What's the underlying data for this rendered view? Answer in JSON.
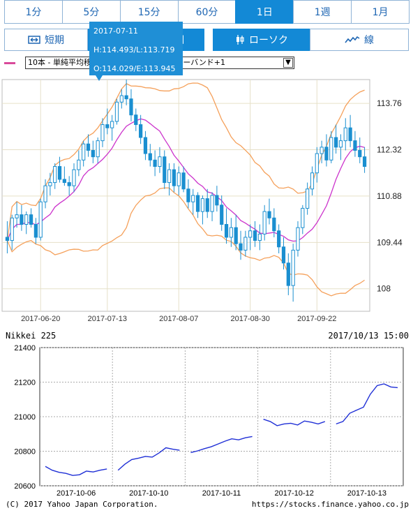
{
  "tabs": [
    {
      "label": "1分"
    },
    {
      "label": "5分"
    },
    {
      "label": "15分"
    },
    {
      "label": "60分"
    },
    {
      "label": "1日",
      "active": true
    },
    {
      "label": "1週"
    },
    {
      "label": "1月"
    }
  ],
  "mode": {
    "short_label": "短期",
    "long_label": "期",
    "candle_label": "ローソク",
    "line_label": "線"
  },
  "indicator": {
    "swatch_color": "#d94a9a",
    "selected": "10本 - 単純平均移動線　　　本 - ボリンジャーバンド+1"
  },
  "tooltip": {
    "date": "2017-07-11",
    "hl": "H:114.493/L:113.719",
    "oe": "O:114.029/E:113.945"
  },
  "chart_data": [
    {
      "type": "candlestick",
      "title": "",
      "x_ticks": [
        "2017-06-20",
        "2017-07-13",
        "2017-08-07",
        "2017-08-30",
        "2017-09-22"
      ],
      "y_ticks": [
        108,
        109.44,
        110.88,
        112.32,
        113.76
      ],
      "ylim": [
        107.3,
        114.5
      ],
      "grid": true,
      "colors": {
        "candle": "#1a8fd0",
        "sma": "#cc33cc",
        "bollinger": "#f5a05a"
      },
      "ohlc": [
        [
          109.6,
          110.1,
          109.1,
          109.5
        ],
        [
          109.5,
          110.3,
          109.2,
          110.2
        ],
        [
          110.2,
          110.7,
          109.9,
          110.3
        ],
        [
          110.3,
          110.6,
          109.8,
          110.0
        ],
        [
          110.0,
          110.4,
          109.7,
          110.3
        ],
        [
          110.3,
          110.5,
          109.9,
          110.0
        ],
        [
          110.0,
          110.2,
          109.4,
          109.6
        ],
        [
          109.6,
          110.8,
          109.5,
          110.7
        ],
        [
          110.7,
          111.4,
          110.5,
          111.2
        ],
        [
          111.2,
          111.6,
          110.9,
          111.3
        ],
        [
          111.3,
          111.9,
          111.1,
          111.8
        ],
        [
          111.8,
          112.1,
          111.3,
          111.4
        ],
        [
          111.4,
          111.8,
          111.2,
          111.3
        ],
        [
          111.3,
          111.5,
          110.9,
          111.2
        ],
        [
          111.2,
          111.9,
          111.0,
          111.7
        ],
        [
          111.7,
          112.3,
          111.5,
          112.0
        ],
        [
          112.0,
          112.6,
          111.8,
          112.5
        ],
        [
          112.5,
          112.8,
          112.1,
          112.3
        ],
        [
          112.3,
          112.6,
          111.9,
          112.1
        ],
        [
          112.1,
          112.7,
          111.9,
          112.6
        ],
        [
          112.6,
          113.3,
          112.4,
          113.1
        ],
        [
          113.1,
          113.6,
          112.8,
          113.0
        ],
        [
          113.0,
          113.4,
          112.6,
          113.2
        ],
        [
          113.2,
          113.9,
          113.1,
          113.8
        ],
        [
          113.8,
          114.2,
          113.6,
          114.0
        ],
        [
          114.0,
          114.5,
          113.7,
          113.9
        ],
        [
          113.9,
          114.2,
          113.2,
          113.4
        ],
        [
          113.4,
          113.6,
          112.9,
          113.1
        ],
        [
          113.1,
          113.4,
          112.5,
          112.7
        ],
        [
          112.7,
          112.9,
          112.0,
          112.2
        ],
        [
          112.2,
          112.5,
          111.8,
          112.0
        ],
        [
          112.0,
          112.3,
          111.5,
          111.8
        ],
        [
          111.8,
          112.4,
          111.6,
          112.1
        ],
        [
          112.1,
          112.3,
          111.1,
          111.3
        ],
        [
          111.3,
          111.9,
          110.9,
          111.7
        ],
        [
          111.7,
          111.9,
          111.0,
          111.2
        ],
        [
          111.2,
          111.8,
          110.9,
          111.6
        ],
        [
          111.6,
          111.8,
          111.0,
          111.1
        ],
        [
          111.1,
          111.4,
          110.5,
          110.7
        ],
        [
          110.7,
          111.1,
          110.3,
          110.9
        ],
        [
          110.9,
          111.0,
          110.2,
          110.4
        ],
        [
          110.4,
          110.9,
          110.0,
          110.8
        ],
        [
          110.8,
          111.1,
          110.2,
          110.4
        ],
        [
          110.4,
          111.0,
          110.1,
          110.9
        ],
        [
          110.9,
          111.2,
          110.4,
          110.6
        ],
        [
          110.6,
          110.9,
          109.8,
          110.0
        ],
        [
          110.0,
          110.5,
          109.4,
          109.6
        ],
        [
          109.6,
          110.2,
          109.3,
          109.9
        ],
        [
          109.9,
          110.3,
          109.2,
          109.4
        ],
        [
          109.4,
          109.8,
          108.9,
          109.2
        ],
        [
          109.2,
          109.8,
          109.0,
          109.6
        ],
        [
          109.6,
          110.0,
          109.2,
          109.8
        ],
        [
          109.8,
          110.1,
          109.3,
          109.5
        ],
        [
          109.5,
          110.0,
          109.2,
          109.7
        ],
        [
          109.7,
          110.6,
          109.5,
          110.4
        ],
        [
          110.4,
          110.8,
          110.0,
          110.2
        ],
        [
          110.2,
          110.5,
          109.6,
          109.8
        ],
        [
          109.8,
          110.0,
          109.1,
          109.3
        ],
        [
          109.3,
          109.6,
          108.6,
          108.8
        ],
        [
          108.8,
          109.1,
          107.8,
          108.1
        ],
        [
          108.1,
          109.4,
          107.6,
          109.2
        ],
        [
          109.2,
          110.1,
          109.0,
          109.9
        ],
        [
          109.9,
          110.6,
          109.7,
          110.5
        ],
        [
          110.5,
          111.3,
          110.3,
          111.1
        ],
        [
          111.1,
          111.8,
          110.9,
          111.6
        ],
        [
          111.6,
          112.4,
          111.3,
          112.2
        ],
        [
          112.2,
          112.6,
          111.9,
          112.4
        ],
        [
          112.4,
          112.8,
          111.8,
          112.0
        ],
        [
          112.0,
          112.9,
          111.9,
          112.7
        ],
        [
          112.7,
          113.1,
          112.2,
          112.4
        ],
        [
          112.4,
          112.8,
          112.0,
          112.6
        ],
        [
          112.6,
          113.3,
          112.3,
          113.0
        ],
        [
          113.0,
          113.4,
          112.4,
          112.6
        ],
        [
          112.6,
          112.9,
          112.1,
          112.3
        ],
        [
          112.3,
          112.7,
          111.9,
          112.1
        ],
        [
          112.1,
          112.4,
          111.6,
          111.8
        ]
      ]
    },
    {
      "type": "line",
      "title": "Nikkei 225",
      "timestamp": "2017/10/13 15:00",
      "x_ticks": [
        "2017-10-06",
        "2017-10-10",
        "2017-10-11",
        "2017-10-12",
        "2017-10-13"
      ],
      "y_ticks": [
        20600,
        20800,
        21000,
        21200,
        21400
      ],
      "ylim": [
        20600,
        21400
      ],
      "grid": true,
      "line_color": "#1f2fd6",
      "days": [
        [
          20712,
          20690,
          20678,
          20672,
          20660,
          20664,
          20685,
          20680,
          20690,
          20697
        ],
        [
          20690,
          20725,
          20752,
          20760,
          20770,
          20766,
          20790,
          20820,
          20812,
          20806
        ],
        [
          20792,
          20802,
          20815,
          20826,
          20842,
          20858,
          20872,
          20866,
          20878,
          20885
        ],
        [
          20985,
          20972,
          20948,
          20958,
          20962,
          20952,
          20975,
          20968,
          20958,
          20972
        ],
        [
          20958,
          20972,
          21020,
          21038,
          21055,
          21130,
          21180,
          21190,
          21172,
          21168
        ]
      ]
    }
  ],
  "footer": {
    "copyright": "(C) 2017 Yahoo Japan Corporation.",
    "source": "https://stocks.finance.yahoo.co.jp"
  }
}
